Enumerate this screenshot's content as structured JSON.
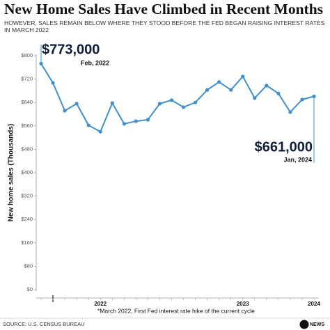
{
  "chart_data": {
    "type": "line",
    "title": "New Home Sales Have Climbed in Recent Months",
    "subtitle": "HOWEVER, SALES REMAIN BELOW WHERE THEY STOOD BEFORE THE FED BEGAN RAISING INTEREST RATES IN MARCH 2022",
    "y_label": "New home sales (Thousands)",
    "categories": [
      null,
      null,
      null,
      null,
      null,
      "2022",
      null,
      null,
      null,
      null,
      null,
      null,
      null,
      null,
      null,
      null,
      null,
      "2023",
      null,
      null,
      null,
      null,
      null,
      "2024"
    ],
    "values": [
      773,
      707,
      612,
      636,
      562,
      540,
      638,
      567,
      576,
      581,
      636,
      648,
      624,
      640,
      683,
      710,
      683,
      729,
      655,
      698,
      671,
      607,
      650,
      661
    ],
    "value_labels": [
      "$773,000",
      null,
      null,
      null,
      null,
      null,
      null,
      null,
      null,
      null,
      null,
      null,
      null,
      null,
      null,
      null,
      null,
      null,
      null,
      null,
      null,
      null,
      null,
      "$661,000"
    ],
    "point_notes": [
      "Feb, 2022",
      null,
      null,
      null,
      null,
      null,
      null,
      null,
      null,
      null,
      null,
      null,
      null,
      null,
      null,
      null,
      null,
      null,
      null,
      null,
      null,
      null,
      null,
      "Jan, 2024"
    ],
    "color": "#3d8fd1",
    "ylim": [
      0,
      800
    ],
    "yticks": [
      {
        "value": 0,
        "label": "$0"
      },
      {
        "value": 80,
        "label": "$80"
      },
      {
        "value": 160,
        "label": "$160"
      },
      {
        "value": 240,
        "label": "$240"
      },
      {
        "value": 320,
        "label": "$320"
      },
      {
        "value": 400,
        "label": "$400"
      },
      {
        "value": 480,
        "label": "$480"
      },
      {
        "value": 560,
        "label": "$560"
      },
      {
        "value": 640,
        "label": "$640"
      },
      {
        "value": 720,
        "label": "$720"
      },
      {
        "value": 800,
        "label": "$800"
      }
    ],
    "footnote": "*March 2022, First Fed interest rate hike of the current cycle",
    "source": "SOURCE: U.S. CENSUS BUREAU",
    "logo": "NEWS"
  }
}
